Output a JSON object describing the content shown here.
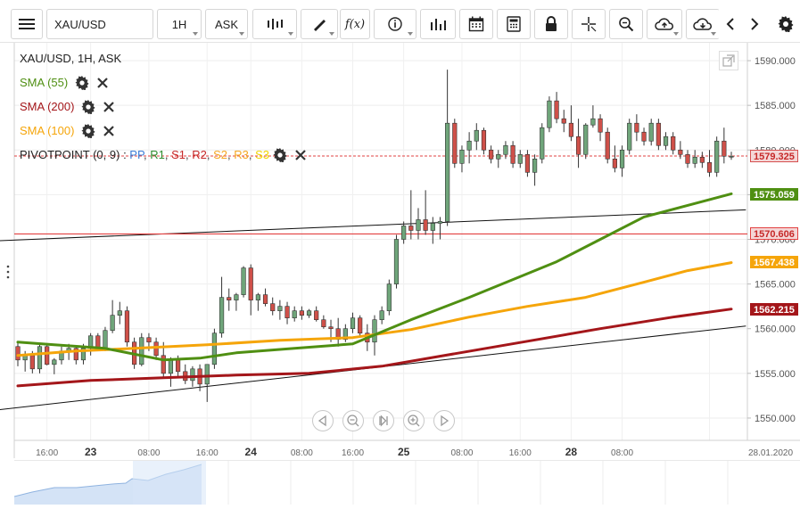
{
  "toolbar": {
    "symbol": "XAU/USD",
    "timeframe": "1H",
    "price_type": "ASK",
    "icons": [
      "menu-icon",
      "candles-icon",
      "draw-icon",
      "function-icon",
      "info-icon",
      "indicators-icon",
      "calendar-icon",
      "calculator-icon",
      "lock-icon",
      "crosshair-icon",
      "zoom-icon",
      "cloud-upload-icon",
      "cloud-download-icon",
      "prev-icon",
      "next-icon",
      "settings-icon"
    ]
  },
  "legend": {
    "title": "XAU/USD, 1H, ASK",
    "sma55": "SMA (55)",
    "sma200": "SMA (200)",
    "sma100": "SMA (100)",
    "pivot_prefix": "PIVOTPOINT (0, 9)",
    "pivot_sep": " : ",
    "pivot_items": [
      {
        "label": "PP",
        "color": "#3b7dd8"
      },
      {
        "label": "R1",
        "color": "#2e8b2e"
      },
      {
        "label": "S1",
        "color": "#c62828"
      },
      {
        "label": "R2",
        "color": "#c62828"
      },
      {
        "label": "S2",
        "color": "#f5a623"
      },
      {
        "label": "R3",
        "color": "#f5a623"
      },
      {
        "label": "S3",
        "color": "#f2d500"
      }
    ],
    "colors": {
      "sma55": "#4f8f12",
      "sma200": "#a4161a",
      "sma100": "#f5a50a"
    }
  },
  "price_tags": [
    {
      "value": "1579.325",
      "price": 1579.325,
      "bg": "#f4d7d7",
      "fg": "#c62828",
      "border": "#d65050"
    },
    {
      "value": "1575.059",
      "price": 1575.059,
      "bg": "#4f8f12",
      "fg": "#ffffff",
      "border": "#4f8f12"
    },
    {
      "value": "1570.606",
      "price": 1570.606,
      "bg": "#f4d7d7",
      "fg": "#c62828",
      "border": "#e24040"
    },
    {
      "value": "1567.438",
      "price": 1567.438,
      "bg": "#f5a50a",
      "fg": "#ffffff",
      "border": "#f5a50a"
    },
    {
      "value": "1562.215",
      "price": 1562.215,
      "bg": "#a4161a",
      "fg": "#ffffff",
      "border": "#a4161a"
    }
  ],
  "chart_data": {
    "type": "candlestick",
    "symbol": "XAU/USD",
    "timeframe": "1H",
    "y_ticks": [
      "1590.000",
      "1585.000",
      "1580.000",
      "1575.000",
      "1570.000",
      "1565.000",
      "1560.000",
      "1555.000",
      "1550.000"
    ],
    "y_range": [
      1547.5,
      1592
    ],
    "x_ticks": [
      "16:00",
      "23",
      "08:00",
      "16:00",
      "24",
      "08:00",
      "16:00",
      "25",
      "08:00",
      "16:00",
      "28",
      "08:00",
      "28.01.2020"
    ],
    "current_price": 1579.325,
    "horizontal_level": 1570.606,
    "candles": [
      [
        1558.0,
        1558.6,
        1555.8,
        1556.5
      ],
      [
        1556.5,
        1557.5,
        1555.2,
        1557.0
      ],
      [
        1557.0,
        1557.5,
        1555.0,
        1555.5
      ],
      [
        1555.5,
        1558.3,
        1555.0,
        1558.0
      ],
      [
        1558.0,
        1558.2,
        1555.9,
        1556.0
      ],
      [
        1556.0,
        1556.7,
        1554.9,
        1556.5
      ],
      [
        1556.5,
        1558.0,
        1556.0,
        1557.5
      ],
      [
        1557.5,
        1558.3,
        1556.5,
        1557.8
      ],
      [
        1557.8,
        1558.0,
        1556.0,
        1556.5
      ],
      [
        1556.5,
        1558.3,
        1556.0,
        1557.8
      ],
      [
        1557.8,
        1559.5,
        1557.0,
        1559.2
      ],
      [
        1559.2,
        1559.5,
        1557.5,
        1557.8
      ],
      [
        1557.8,
        1560.2,
        1557.5,
        1559.8
      ],
      [
        1559.8,
        1563.2,
        1559.5,
        1561.5
      ],
      [
        1561.5,
        1563.0,
        1560.5,
        1562.0
      ],
      [
        1562.0,
        1562.5,
        1558.0,
        1558.5
      ],
      [
        1558.5,
        1559.0,
        1555.5,
        1556.0
      ],
      [
        1556.0,
        1559.5,
        1555.8,
        1559.0
      ],
      [
        1559.0,
        1559.5,
        1557.5,
        1558.5
      ],
      [
        1558.5,
        1559.0,
        1556.5,
        1557.0
      ],
      [
        1557.0,
        1558.5,
        1554.5,
        1555.0
      ],
      [
        1555.0,
        1556.8,
        1553.5,
        1556.5
      ],
      [
        1556.5,
        1557.0,
        1554.5,
        1555.2
      ],
      [
        1555.2,
        1556.0,
        1553.8,
        1554.2
      ],
      [
        1554.2,
        1555.8,
        1553.5,
        1555.5
      ],
      [
        1555.5,
        1556.0,
        1553.0,
        1553.8
      ],
      [
        1553.8,
        1556.0,
        1551.8,
        1556.0
      ],
      [
        1556.0,
        1560.0,
        1555.5,
        1559.5
      ],
      [
        1559.5,
        1565.8,
        1559.0,
        1563.5
      ],
      [
        1563.5,
        1564.5,
        1562.0,
        1563.2
      ],
      [
        1563.2,
        1564.0,
        1562.0,
        1563.8
      ],
      [
        1563.8,
        1567.0,
        1563.5,
        1566.8
      ],
      [
        1566.8,
        1567.2,
        1561.5,
        1563.2
      ],
      [
        1563.2,
        1564.0,
        1562.0,
        1563.8
      ],
      [
        1563.8,
        1564.5,
        1562.5,
        1562.8
      ],
      [
        1562.8,
        1563.5,
        1561.5,
        1562.0
      ],
      [
        1562.0,
        1563.2,
        1561.0,
        1562.5
      ],
      [
        1562.5,
        1563.0,
        1560.5,
        1561.2
      ],
      [
        1561.2,
        1562.5,
        1560.8,
        1562.0
      ],
      [
        1562.0,
        1562.5,
        1561.0,
        1561.5
      ],
      [
        1561.5,
        1562.2,
        1561.2,
        1562.0
      ],
      [
        1562.0,
        1562.5,
        1560.8,
        1561.0
      ],
      [
        1561.0,
        1561.5,
        1560.0,
        1560.2
      ],
      [
        1560.2,
        1561.0,
        1558.5,
        1560.0
      ],
      [
        1560.0,
        1561.2,
        1558.0,
        1558.8
      ],
      [
        1558.8,
        1560.5,
        1558.5,
        1560.0
      ],
      [
        1560.0,
        1561.8,
        1559.5,
        1561.2
      ],
      [
        1561.2,
        1561.5,
        1559.0,
        1559.5
      ],
      [
        1559.5,
        1560.5,
        1557.5,
        1558.5
      ],
      [
        1558.5,
        1561.5,
        1557.0,
        1561.0
      ],
      [
        1561.0,
        1562.5,
        1560.5,
        1562.0
      ],
      [
        1562.0,
        1565.5,
        1561.5,
        1565.0
      ],
      [
        1565.0,
        1570.5,
        1564.5,
        1570.0
      ],
      [
        1570.0,
        1572.0,
        1569.5,
        1571.5
      ],
      [
        1571.5,
        1575.5,
        1570.0,
        1571.0
      ],
      [
        1571.0,
        1573.5,
        1570.0,
        1572.2
      ],
      [
        1572.2,
        1575.5,
        1570.5,
        1571.0
      ],
      [
        1571.0,
        1572.5,
        1569.5,
        1571.8
      ],
      [
        1571.8,
        1572.5,
        1570.0,
        1572.0
      ],
      [
        1572.0,
        1589.0,
        1571.5,
        1583.0
      ],
      [
        1583.0,
        1583.5,
        1578.0,
        1578.5
      ],
      [
        1578.5,
        1580.5,
        1577.5,
        1580.0
      ],
      [
        1580.0,
        1582.0,
        1578.5,
        1581.0
      ],
      [
        1581.0,
        1583.0,
        1580.0,
        1582.2
      ],
      [
        1582.2,
        1582.5,
        1579.5,
        1580.0
      ],
      [
        1580.0,
        1580.5,
        1578.5,
        1579.0
      ],
      [
        1579.0,
        1580.0,
        1578.0,
        1579.5
      ],
      [
        1579.5,
        1581.0,
        1579.0,
        1580.5
      ],
      [
        1580.5,
        1581.0,
        1578.0,
        1578.5
      ],
      [
        1578.5,
        1580.0,
        1578.0,
        1579.5
      ],
      [
        1579.5,
        1580.0,
        1577.0,
        1577.5
      ],
      [
        1577.5,
        1579.5,
        1576.0,
        1579.0
      ],
      [
        1579.0,
        1583.0,
        1578.5,
        1582.5
      ],
      [
        1582.5,
        1586.0,
        1582.0,
        1585.5
      ],
      [
        1585.5,
        1586.5,
        1583.0,
        1583.5
      ],
      [
        1583.5,
        1584.5,
        1582.0,
        1583.0
      ],
      [
        1583.0,
        1585.0,
        1581.0,
        1581.5
      ],
      [
        1581.5,
        1583.5,
        1578.0,
        1579.5
      ],
      [
        1579.5,
        1583.0,
        1579.0,
        1582.8
      ],
      [
        1582.8,
        1585.0,
        1582.5,
        1583.5
      ],
      [
        1583.5,
        1584.0,
        1581.0,
        1582.0
      ],
      [
        1582.0,
        1582.5,
        1578.5,
        1579.0
      ],
      [
        1579.0,
        1580.5,
        1577.5,
        1578.0
      ],
      [
        1578.0,
        1580.5,
        1577.0,
        1580.0
      ],
      [
        1580.0,
        1583.5,
        1579.5,
        1583.0
      ],
      [
        1583.0,
        1584.0,
        1581.0,
        1582.0
      ],
      [
        1582.0,
        1582.5,
        1580.5,
        1581.0
      ],
      [
        1581.0,
        1583.5,
        1580.5,
        1583.0
      ],
      [
        1583.0,
        1583.5,
        1580.0,
        1580.5
      ],
      [
        1580.5,
        1582.0,
        1580.0,
        1581.5
      ],
      [
        1581.5,
        1582.0,
        1579.5,
        1580.0
      ],
      [
        1580.0,
        1581.0,
        1579.0,
        1579.5
      ],
      [
        1579.5,
        1580.0,
        1578.0,
        1578.5
      ],
      [
        1578.5,
        1580.0,
        1578.0,
        1579.2
      ],
      [
        1579.2,
        1579.8,
        1578.0,
        1578.6
      ],
      [
        1578.6,
        1580.0,
        1577.0,
        1577.5
      ],
      [
        1577.5,
        1581.5,
        1577.0,
        1581.0
      ],
      [
        1581.0,
        1582.5,
        1578.5,
        1579.3
      ],
      [
        1579.3,
        1579.8,
        1578.9,
        1579.3
      ]
    ],
    "sma55": [
      [
        0,
        1558.5
      ],
      [
        5,
        1558.2
      ],
      [
        12,
        1557.8
      ],
      [
        20,
        1556.5
      ],
      [
        25,
        1556.7
      ],
      [
        30,
        1557.3
      ],
      [
        38,
        1557.8
      ],
      [
        46,
        1558.3
      ],
      [
        54,
        1561.0
      ],
      [
        62,
        1563.5
      ],
      [
        68,
        1565.5
      ],
      [
        74,
        1567.5
      ],
      [
        80,
        1570.0
      ],
      [
        86,
        1572.5
      ],
      [
        92,
        1573.8
      ],
      [
        98,
        1575.1
      ]
    ],
    "sma100": [
      [
        0,
        1557.0
      ],
      [
        8,
        1557.5
      ],
      [
        16,
        1557.8
      ],
      [
        26,
        1558.2
      ],
      [
        36,
        1558.7
      ],
      [
        46,
        1559.0
      ],
      [
        54,
        1559.9
      ],
      [
        62,
        1561.3
      ],
      [
        70,
        1562.5
      ],
      [
        78,
        1563.5
      ],
      [
        86,
        1565.2
      ],
      [
        92,
        1566.5
      ],
      [
        98,
        1567.4
      ]
    ],
    "sma200": [
      [
        0,
        1553.6
      ],
      [
        10,
        1554.2
      ],
      [
        20,
        1554.5
      ],
      [
        30,
        1554.8
      ],
      [
        40,
        1555.0
      ],
      [
        50,
        1555.8
      ],
      [
        60,
        1557.2
      ],
      [
        70,
        1558.6
      ],
      [
        80,
        1560.0
      ],
      [
        90,
        1561.3
      ],
      [
        98,
        1562.2
      ]
    ],
    "trendlines": [
      {
        "from": [
          -4,
          1569.8
        ],
        "to": [
          100,
          1573.3
        ]
      },
      {
        "from": [
          -4,
          1550.8
        ],
        "to": [
          100,
          1560.3
        ]
      }
    ]
  }
}
